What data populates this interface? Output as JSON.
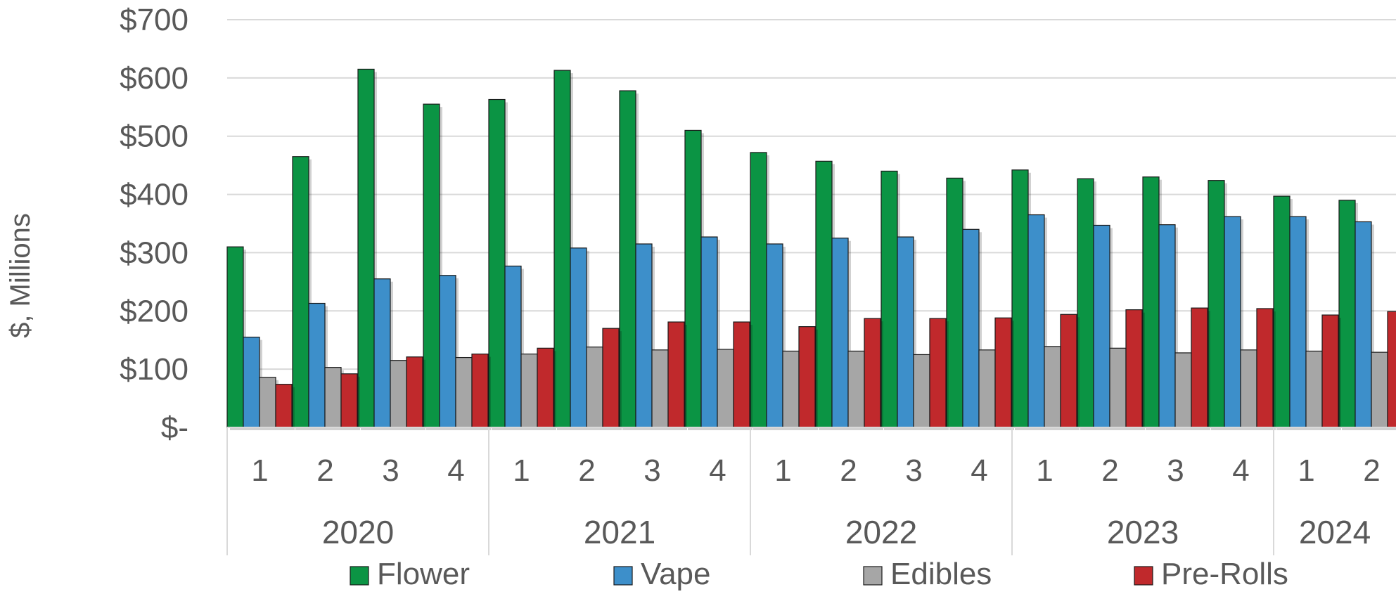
{
  "chart_data": {
    "type": "bar",
    "title": "",
    "xlabel": "",
    "ylabel": "$, Millions",
    "ylim": [
      0,
      700
    ],
    "y_ticks": [
      "$-",
      "$100",
      "$200",
      "$300",
      "$400",
      "$500",
      "$600",
      "$700"
    ],
    "y_tick_values": [
      0,
      100,
      200,
      300,
      400,
      500,
      600,
      700
    ],
    "grid": true,
    "legend_position": "bottom",
    "categories": [
      "1",
      "2",
      "3",
      "4",
      "1",
      "2",
      "3",
      "4",
      "1",
      "2",
      "3",
      "4",
      "1",
      "2",
      "3",
      "4",
      "1",
      "2"
    ],
    "year_groups": [
      {
        "label": "2020",
        "count": 4
      },
      {
        "label": "2021",
        "count": 4
      },
      {
        "label": "2022",
        "count": 4
      },
      {
        "label": "2023",
        "count": 4
      },
      {
        "label": "2024",
        "count": 2
      }
    ],
    "series": [
      {
        "name": "Flower",
        "color": "#0b9444",
        "values": [
          310,
          465,
          615,
          555,
          563,
          613,
          578,
          510,
          472,
          457,
          440,
          428,
          442,
          427,
          430,
          424,
          397,
          390
        ]
      },
      {
        "name": "Vape",
        "color": "#3d8fca",
        "values": [
          155,
          213,
          255,
          261,
          277,
          308,
          315,
          327,
          315,
          325,
          327,
          340,
          365,
          347,
          348,
          362,
          362,
          353
        ]
      },
      {
        "name": "Edibles",
        "color": "#a6a6a6",
        "values": [
          86,
          103,
          115,
          120,
          126,
          138,
          133,
          134,
          131,
          131,
          125,
          133,
          139,
          136,
          128,
          133,
          131,
          129
        ]
      },
      {
        "name": "Pre-Rolls",
        "color": "#c0292c",
        "values": [
          74,
          92,
          121,
          126,
          136,
          170,
          181,
          181,
          173,
          187,
          187,
          188,
          194,
          202,
          205,
          204,
          193,
          199
        ]
      }
    ]
  }
}
